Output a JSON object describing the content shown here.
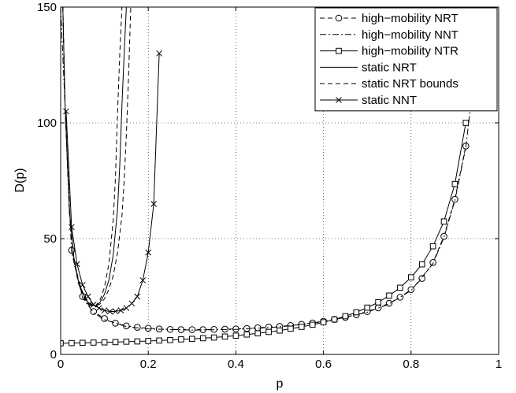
{
  "chart_data": {
    "type": "line",
    "title": "",
    "xlabel": "p",
    "ylabel": "D(p)",
    "xlim": [
      0,
      1
    ],
    "ylim": [
      0,
      150
    ],
    "grid": true,
    "legend_position": "top-right",
    "x_ticks": [
      "0",
      "0.2",
      "0.4",
      "0.6",
      "0.8",
      "1"
    ],
    "y_ticks": [
      "0",
      "50",
      "100",
      "150"
    ],
    "series": [
      {
        "name": "high−mobility NRT",
        "line": "dashed",
        "marker": "circle",
        "x": [
          0.025,
          0.05,
          0.075,
          0.1,
          0.125,
          0.15,
          0.175,
          0.2,
          0.225,
          0.25,
          0.275,
          0.3,
          0.325,
          0.35,
          0.375,
          0.4,
          0.425,
          0.45,
          0.475,
          0.5,
          0.525,
          0.55,
          0.575,
          0.6,
          0.625,
          0.65,
          0.675,
          0.7,
          0.725,
          0.75,
          0.775,
          0.8,
          0.825,
          0.85,
          0.875,
          0.9,
          0.925
        ],
        "y": [
          45,
          25,
          18.5,
          15.5,
          13.5,
          12.3,
          11.7,
          11.3,
          11,
          10.8,
          10.7,
          10.7,
          10.7,
          10.8,
          10.9,
          11,
          11.2,
          11.5,
          11.8,
          12.1,
          12.5,
          13,
          13.6,
          14.3,
          15.1,
          16,
          17.1,
          18.5,
          20.1,
          22.1,
          24.7,
          28,
          32.8,
          39.7,
          51,
          67,
          90
        ]
      },
      {
        "name": "high−mobility NNT",
        "line": "dashdot",
        "marker": "none",
        "x": [
          0,
          0.025,
          0.05,
          0.075,
          0.1,
          0.15,
          0.2,
          0.3,
          0.4,
          0.5,
          0.6,
          0.7,
          0.75,
          0.8,
          0.85,
          0.875,
          0.9,
          0.925,
          0.95,
          0.96
        ],
        "y": [
          150,
          44,
          24.5,
          18,
          15,
          12,
          11,
          10.5,
          10.8,
          11.9,
          14,
          18.2,
          21.8,
          27.6,
          39.2,
          50.5,
          66.5,
          89.5,
          130,
          150
        ]
      },
      {
        "name": "high−mobility NTR",
        "line": "solid",
        "marker": "square",
        "x": [
          0,
          0.025,
          0.05,
          0.075,
          0.1,
          0.125,
          0.15,
          0.175,
          0.2,
          0.225,
          0.25,
          0.275,
          0.3,
          0.325,
          0.35,
          0.375,
          0.4,
          0.425,
          0.45,
          0.475,
          0.5,
          0.525,
          0.55,
          0.575,
          0.6,
          0.625,
          0.65,
          0.675,
          0.7,
          0.725,
          0.75,
          0.775,
          0.8,
          0.825,
          0.85,
          0.875,
          0.9,
          0.925
        ],
        "y": [
          4.8,
          4.9,
          5,
          5.1,
          5.2,
          5.3,
          5.5,
          5.6,
          5.8,
          6,
          6.2,
          6.5,
          6.7,
          7,
          7.3,
          7.7,
          8.1,
          8.6,
          9.1,
          9.7,
          10.3,
          11.1,
          11.9,
          12.8,
          13.9,
          15.1,
          16.5,
          18.2,
          20.2,
          22.5,
          25.4,
          28.8,
          33.3,
          38.9,
          46.7,
          57.4,
          73.6,
          100
        ]
      },
      {
        "name": "static NRT",
        "line": "solid",
        "marker": "none",
        "x": [
          0.005,
          0.01,
          0.02,
          0.03,
          0.04,
          0.05,
          0.06,
          0.07,
          0.08,
          0.09,
          0.1,
          0.11,
          0.12,
          0.13,
          0.135,
          0.14,
          0.145,
          0.15
        ],
        "y": [
          150,
          108,
          62,
          42,
          32,
          26.5,
          23,
          21.3,
          21,
          22.5,
          26,
          32,
          43,
          63,
          82,
          108,
          130,
          150
        ]
      },
      {
        "name": "static NRT bounds",
        "line": "dashed",
        "marker": "none",
        "x": [
          0.005,
          0.01,
          0.02,
          0.03,
          0.04,
          0.05,
          0.06,
          0.07,
          0.08,
          0.09,
          0.1,
          0.11,
          0.12,
          0.125,
          0.13,
          0.135,
          0.14
        ],
        "y": [
          150,
          107,
          61,
          41,
          31,
          26,
          22.5,
          20.8,
          21,
          23.5,
          29,
          39,
          58,
          76,
          105,
          130,
          150
        ]
      },
      {
        "name": "",
        "line": "dashed",
        "marker": "none",
        "x": [
          0.005,
          0.01,
          0.02,
          0.03,
          0.04,
          0.05,
          0.06,
          0.07,
          0.08,
          0.09,
          0.1,
          0.11,
          0.12,
          0.13,
          0.14,
          0.145,
          0.15,
          0.155,
          0.16
        ],
        "y": [
          150,
          108,
          62,
          42,
          32,
          27,
          23.5,
          21.7,
          21,
          21.8,
          24,
          28,
          34,
          44,
          60,
          75,
          95,
          120,
          150
        ]
      },
      {
        "name": "static NNT",
        "line": "solid",
        "marker": "x",
        "x": [
          0.0125,
          0.025,
          0.0375,
          0.05,
          0.0625,
          0.075,
          0.0875,
          0.1,
          0.1125,
          0.125,
          0.1375,
          0.15,
          0.1625,
          0.175,
          0.1875,
          0.2,
          0.2125,
          0.225
        ],
        "y": [
          105,
          55,
          39,
          30,
          25,
          21.5,
          20,
          19,
          18.5,
          18.6,
          19,
          20,
          22,
          25,
          32,
          44,
          65,
          130
        ]
      }
    ]
  }
}
